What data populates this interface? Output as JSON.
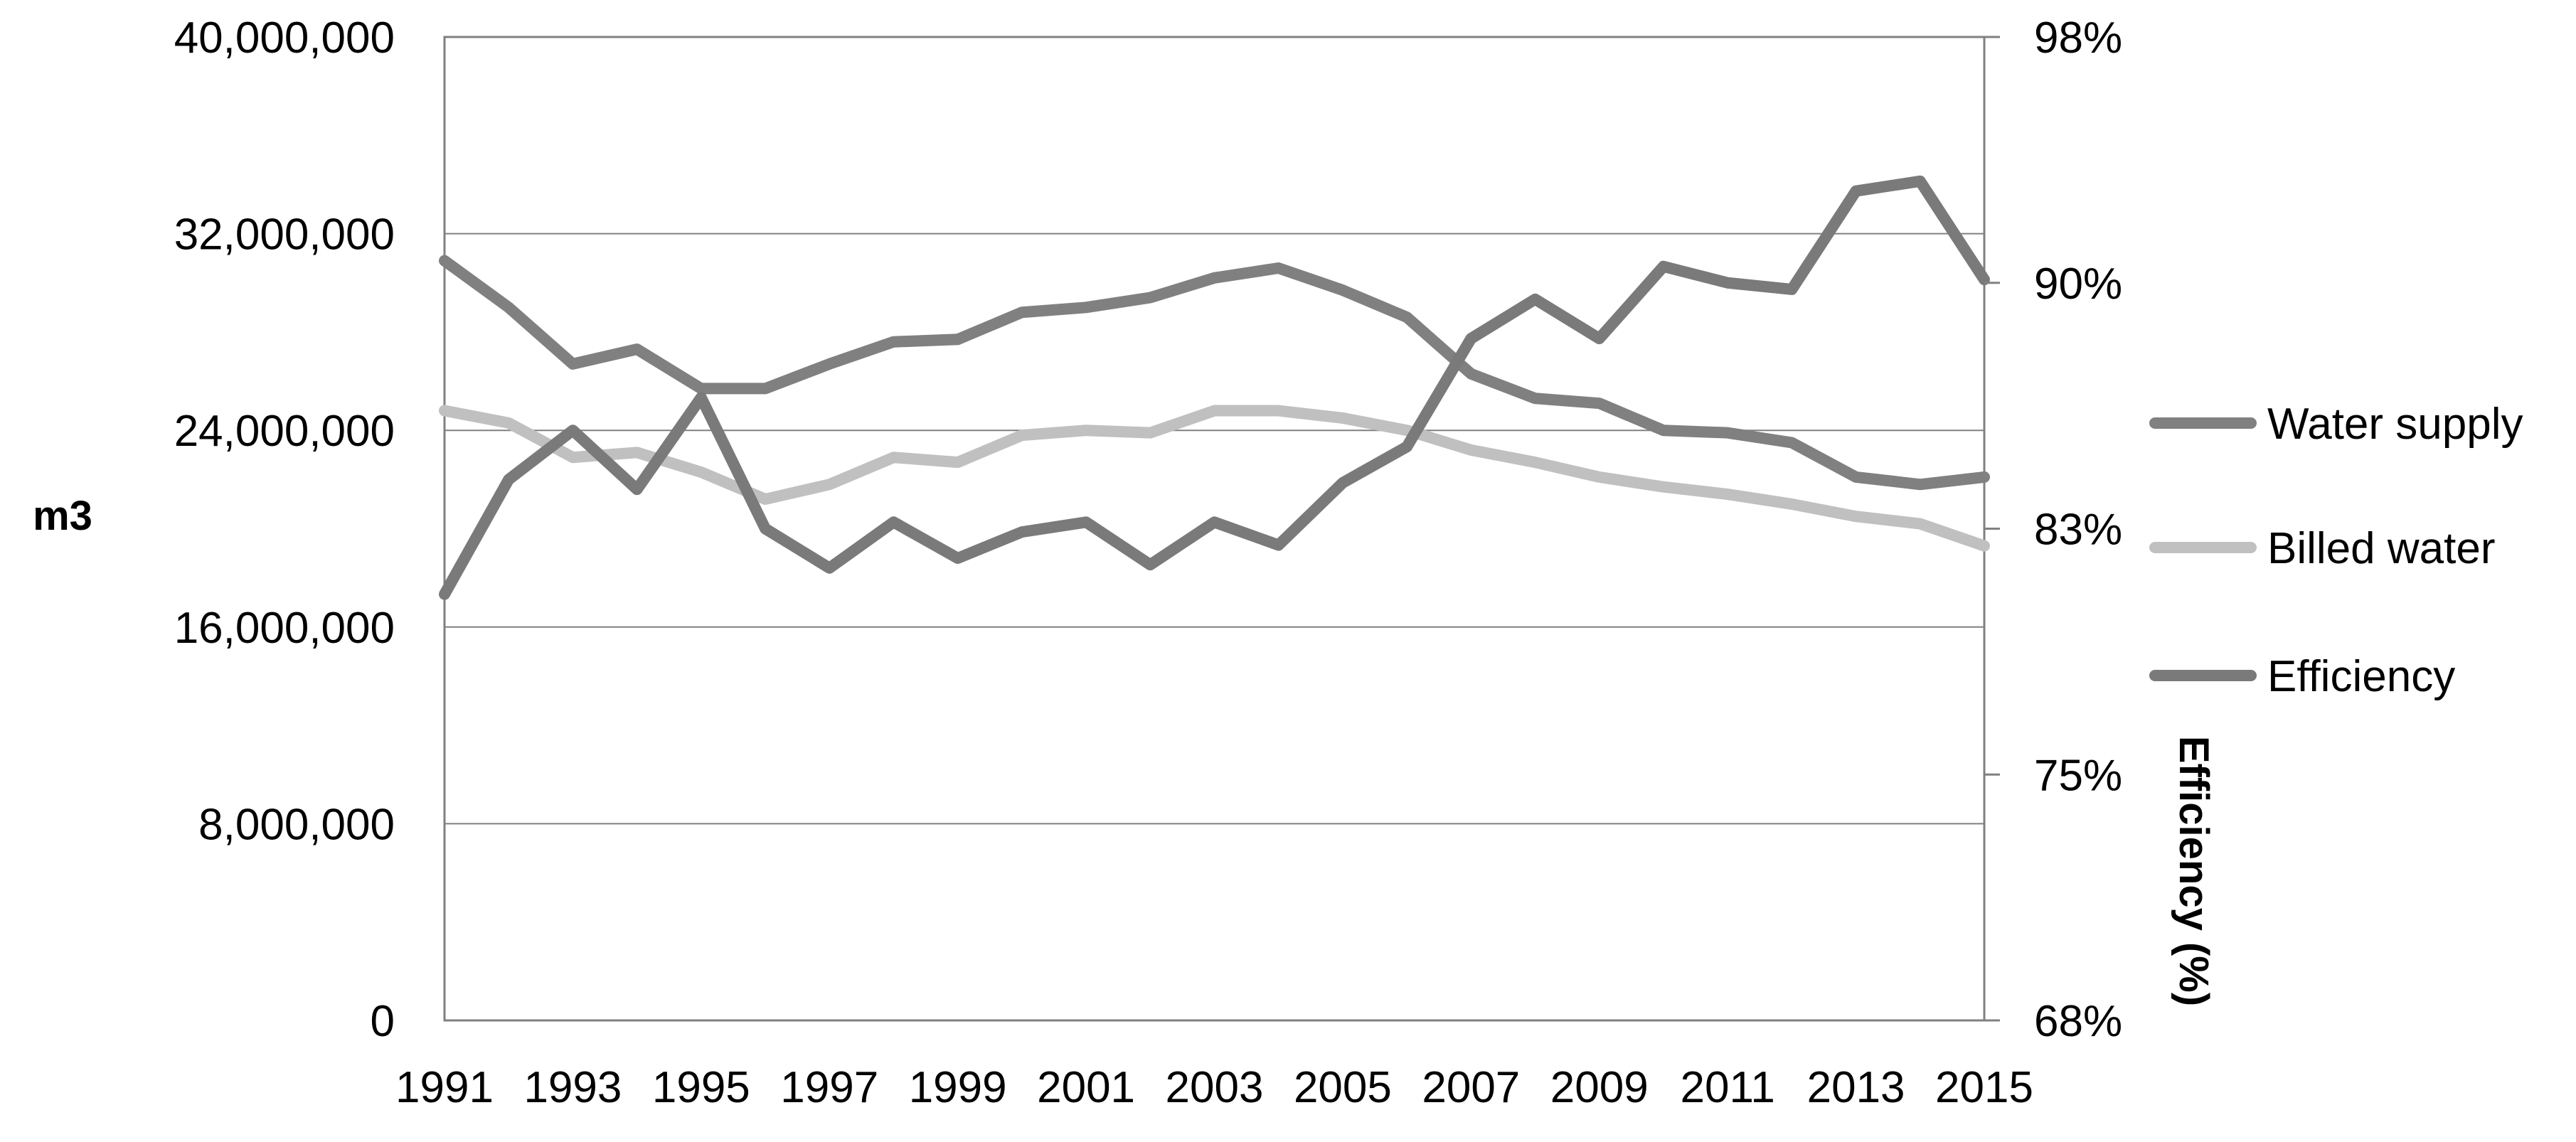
{
  "chart_data": {
    "type": "line",
    "title": "",
    "x": [
      1991,
      1992,
      1993,
      1994,
      1995,
      1996,
      1997,
      1998,
      1999,
      2000,
      2001,
      2002,
      2003,
      2004,
      2005,
      2006,
      2007,
      2008,
      2009,
      2010,
      2011,
      2012,
      2013,
      2014,
      2015
    ],
    "x_tick_labels": [
      "1991",
      "1993",
      "1995",
      "1997",
      "1999",
      "2001",
      "2003",
      "2005",
      "2007",
      "2009",
      "2011",
      "2013",
      "2015"
    ],
    "ylabel": "m3",
    "ylim": [
      0,
      40000000
    ],
    "y_tick_labels": [
      "0",
      "8,000,000",
      "16,000,000",
      "24,000,000",
      "32,000,000",
      "40,000,000"
    ],
    "y2label": "Efficiency (%)",
    "y2lim": [
      68,
      98
    ],
    "y2_tick_labels": [
      "68%",
      "75%",
      "83%",
      "90%",
      "98%"
    ],
    "grid": true,
    "legend_position": "right",
    "series": [
      {
        "name": "Water supply",
        "axis": "left",
        "color": "#808080",
        "values": [
          30900000,
          29000000,
          26700000,
          27300000,
          25700000,
          25700000,
          26700000,
          27600000,
          27700000,
          28800000,
          29000000,
          29400000,
          30200000,
          30600000,
          29700000,
          28600000,
          26300000,
          25300000,
          25100000,
          24000000,
          23900000,
          23500000,
          22100000,
          21800000,
          22100000
        ]
      },
      {
        "name": "Billed water",
        "axis": "left",
        "color": "#c0c0c0",
        "values": [
          24800000,
          24300000,
          22900000,
          23100000,
          22300000,
          21200000,
          21800000,
          22900000,
          22700000,
          23800000,
          24000000,
          23900000,
          24800000,
          24800000,
          24500000,
          24000000,
          23200000,
          22700000,
          22100000,
          21700000,
          21400000,
          21000000,
          20500000,
          20200000,
          19300000
        ]
      },
      {
        "name": "Efficiency",
        "axis": "right",
        "color": "#7a7a7a",
        "values": [
          81.0,
          84.5,
          86.0,
          84.2,
          87.0,
          83.0,
          81.8,
          83.2,
          82.1,
          82.9,
          83.2,
          81.9,
          83.2,
          82.5,
          84.4,
          85.5,
          88.8,
          90.0,
          88.8,
          91.0,
          90.5,
          90.3,
          93.3,
          93.6,
          90.6
        ]
      }
    ]
  }
}
